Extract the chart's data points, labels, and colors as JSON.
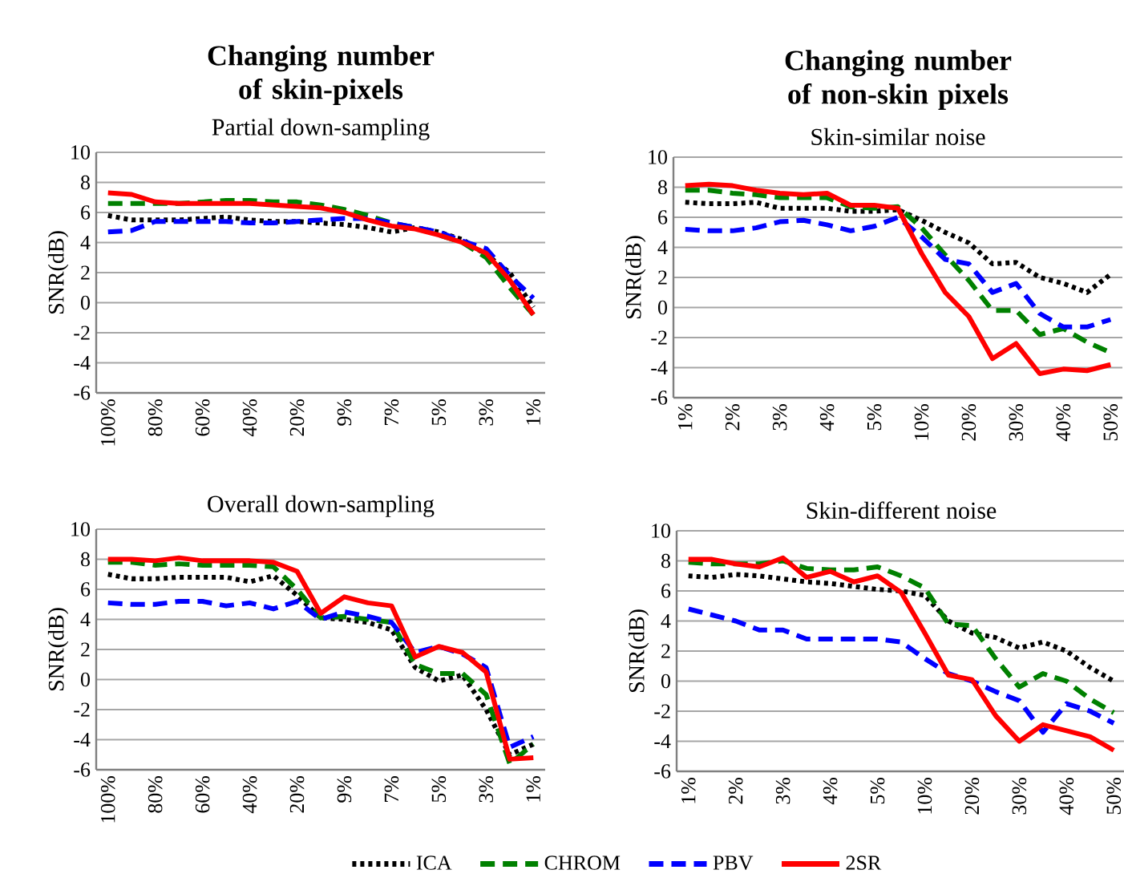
{
  "chart_data": [
    {
      "type": "line",
      "title": "Changing number of skin-pixels",
      "subtitle": "Partial down-sampling",
      "ylabel": "SNR(dB)",
      "categories": [
        "100%",
        null,
        "80%",
        null,
        "60%",
        null,
        "40%",
        null,
        "20%",
        null,
        "9%",
        null,
        "7%",
        null,
        "5%",
        null,
        "3%",
        null,
        "1%"
      ],
      "ylim": [
        -6,
        10
      ],
      "yticks": [
        -6,
        -4,
        -2,
        0,
        2,
        4,
        6,
        8,
        10
      ],
      "grid": "y",
      "series": [
        {
          "color": "#000000",
          "line_style": "dotted",
          "values": [
            5.8,
            5.5,
            5.5,
            5.5,
            5.6,
            5.7,
            5.5,
            5.4,
            5.4,
            5.3,
            5.2,
            5.0,
            4.7,
            5.0,
            4.7,
            4.2,
            3.2,
            2.0,
            -0.3
          ]
        },
        {
          "color": "#008000",
          "line_style": "dashed",
          "values": [
            6.6,
            6.6,
            6.6,
            6.6,
            6.7,
            6.8,
            6.8,
            6.7,
            6.7,
            6.5,
            6.2,
            5.8,
            5.3,
            5.0,
            4.5,
            4.0,
            3.0,
            1.0,
            -0.8
          ]
        },
        {
          "color": "#0000ff",
          "line_style": "dashed",
          "values": [
            4.7,
            4.8,
            5.4,
            5.4,
            5.4,
            5.4,
            5.3,
            5.3,
            5.4,
            5.5,
            5.6,
            5.6,
            5.3,
            5.0,
            4.7,
            4.1,
            3.6,
            1.8,
            0.3
          ]
        },
        {
          "color": "#ff0000",
          "line_style": "solid",
          "values": [
            7.3,
            7.2,
            6.7,
            6.6,
            6.6,
            6.6,
            6.6,
            6.5,
            6.4,
            6.3,
            6.0,
            5.5,
            5.1,
            4.9,
            4.5,
            4.0,
            3.3,
            1.5,
            -0.8
          ]
        }
      ]
    },
    {
      "type": "line",
      "title": "Changing number of non-skin pixels",
      "subtitle": "Skin-similar noise",
      "ylabel": "SNR(dB)",
      "categories": [
        "1%",
        null,
        "2%",
        null,
        "3%",
        null,
        "4%",
        null,
        "5%",
        null,
        "10%",
        null,
        "20%",
        null,
        "30%",
        null,
        "40%",
        null,
        "50%"
      ],
      "ylim": [
        -6,
        10
      ],
      "yticks": [
        -6,
        -4,
        -2,
        0,
        2,
        4,
        6,
        8,
        10
      ],
      "grid": "y",
      "series": [
        {
          "color": "#000000",
          "line_style": "dotted",
          "values": [
            7.0,
            6.9,
            6.9,
            7.0,
            6.6,
            6.6,
            6.6,
            6.4,
            6.4,
            6.5,
            5.8,
            5.0,
            4.3,
            2.9,
            3.0,
            2.0,
            1.6,
            1.0,
            2.2
          ]
        },
        {
          "color": "#008000",
          "line_style": "dashed",
          "values": [
            7.8,
            7.8,
            7.6,
            7.5,
            7.3,
            7.3,
            7.3,
            6.7,
            6.6,
            6.7,
            5.3,
            3.5,
            1.8,
            -0.2,
            -0.2,
            -1.8,
            -1.4,
            -2.3,
            -3.0
          ]
        },
        {
          "color": "#0000ff",
          "line_style": "dashed",
          "values": [
            5.2,
            5.1,
            5.1,
            5.3,
            5.7,
            5.8,
            5.5,
            5.1,
            5.4,
            6.0,
            4.7,
            3.2,
            2.9,
            1.0,
            1.6,
            -0.4,
            -1.3,
            -1.3,
            -0.8
          ]
        },
        {
          "color": "#ff0000",
          "line_style": "solid",
          "values": [
            8.1,
            8.2,
            8.1,
            7.8,
            7.6,
            7.5,
            7.6,
            6.8,
            6.8,
            6.6,
            3.6,
            1.0,
            -0.6,
            -3.4,
            -2.4,
            -4.4,
            -4.1,
            -4.2,
            -3.8
          ]
        }
      ]
    },
    {
      "type": "line",
      "title": "Overall down-sampling",
      "ylabel": "SNR(dB)",
      "categories": [
        "100%",
        null,
        "80%",
        null,
        "60%",
        null,
        "40%",
        null,
        "20%",
        null,
        "9%",
        null,
        "7%",
        null,
        "5%",
        null,
        "3%",
        null,
        "1%"
      ],
      "ylim": [
        -6,
        10
      ],
      "yticks": [
        -6,
        -4,
        -2,
        0,
        2,
        4,
        6,
        8,
        10
      ],
      "grid": "y",
      "legend": "bottom",
      "series": [
        {
          "name": "ICA",
          "color": "#000000",
          "line_style": "dotted",
          "values": [
            7.0,
            6.7,
            6.7,
            6.8,
            6.8,
            6.8,
            6.5,
            6.9,
            5.6,
            4.1,
            4.0,
            3.8,
            3.3,
            0.8,
            -0.1,
            0.3,
            -2.0,
            -5.0,
            -4.3
          ]
        },
        {
          "name": "CHROM",
          "color": "#008000",
          "line_style": "dashed",
          "values": [
            7.8,
            7.8,
            7.6,
            7.7,
            7.6,
            7.6,
            7.6,
            7.5,
            6.0,
            4.1,
            4.2,
            4.0,
            3.8,
            1.0,
            0.4,
            0.4,
            -1.0,
            -5.6,
            -4.3
          ]
        },
        {
          "name": "PBV",
          "color": "#0000ff",
          "line_style": "dashed",
          "values": [
            5.1,
            5.0,
            5.0,
            5.2,
            5.2,
            4.9,
            5.1,
            4.7,
            5.2,
            4.0,
            4.5,
            4.2,
            3.8,
            1.8,
            2.2,
            1.7,
            0.8,
            -4.5,
            -3.8
          ]
        },
        {
          "name": "2SR",
          "color": "#ff0000",
          "line_style": "solid",
          "values": [
            8.0,
            8.0,
            7.9,
            8.1,
            7.9,
            7.9,
            7.9,
            7.8,
            7.2,
            4.4,
            5.5,
            5.1,
            4.9,
            1.5,
            2.2,
            1.8,
            0.5,
            -5.3,
            -5.2
          ]
        }
      ]
    },
    {
      "type": "line",
      "title": "Skin-different noise",
      "ylabel": "SNR(dB)",
      "categories": [
        "1%",
        null,
        "2%",
        null,
        "3%",
        null,
        "4%",
        null,
        "5%",
        null,
        "10%",
        null,
        "20%",
        null,
        "30%",
        null,
        "40%",
        null,
        "50%"
      ],
      "ylim": [
        -6,
        10
      ],
      "yticks": [
        -6,
        -4,
        -2,
        0,
        2,
        4,
        6,
        8,
        10
      ],
      "grid": "y",
      "series": [
        {
          "color": "#000000",
          "line_style": "dotted",
          "values": [
            7.0,
            6.9,
            7.1,
            7.0,
            6.8,
            6.6,
            6.5,
            6.3,
            6.1,
            6.0,
            5.7,
            4.0,
            3.2,
            2.9,
            2.2,
            2.6,
            2.0,
            0.9,
            0.0
          ]
        },
        {
          "color": "#008000",
          "line_style": "dashed",
          "values": [
            7.9,
            7.8,
            7.8,
            7.8,
            8.0,
            7.5,
            7.4,
            7.4,
            7.6,
            7.0,
            6.2,
            3.8,
            3.7,
            1.5,
            -0.4,
            0.5,
            0.0,
            -1.2,
            -2.1
          ]
        },
        {
          "color": "#0000ff",
          "line_style": "dashed",
          "values": [
            4.8,
            4.4,
            4.0,
            3.4,
            3.4,
            2.8,
            2.8,
            2.8,
            2.8,
            2.6,
            1.5,
            0.5,
            0.0,
            -0.7,
            -1.3,
            -3.4,
            -1.5,
            -2.0,
            -2.8
          ]
        },
        {
          "color": "#ff0000",
          "line_style": "solid",
          "values": [
            8.1,
            8.1,
            7.8,
            7.6,
            8.2,
            6.9,
            7.3,
            6.6,
            7.0,
            5.9,
            3.2,
            0.4,
            0.1,
            -2.3,
            -4.0,
            -2.9,
            -3.3,
            -3.7,
            -4.6
          ]
        }
      ]
    }
  ]
}
